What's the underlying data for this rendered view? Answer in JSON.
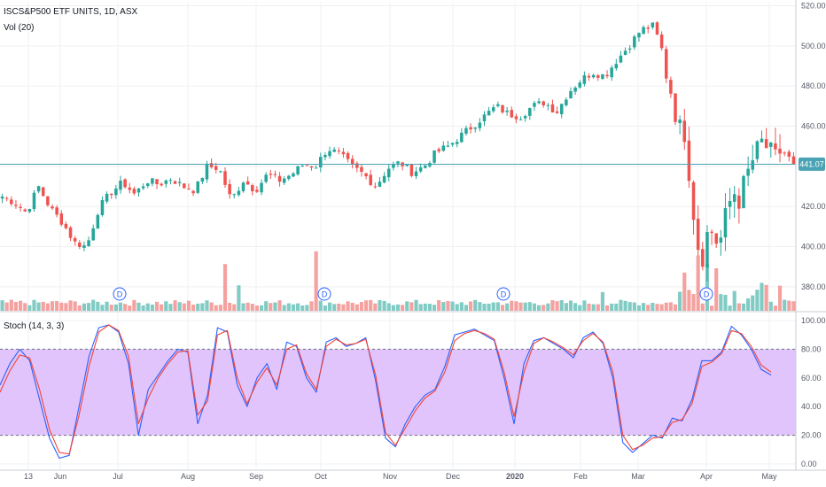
{
  "legend": {
    "symbol": "ISCS&P500 ETF UNITS, 1D, ASX",
    "volume": "Vol (20)",
    "stoch": "Stoch (14, 3, 3)"
  },
  "price_badge": "441.07",
  "colors": {
    "up": "#26a69a",
    "down": "#ef5350",
    "vol_up": "#80cbc4",
    "vol_down": "#f4a19f",
    "k_line": "#2962ff",
    "d_line": "#f44336",
    "band_fill": "#e1c4fb",
    "price_line": "#4aa3b5"
  },
  "chart_data": [
    {
      "type": "candlestick",
      "yaxis_ticks": [
        "380.00",
        "400.00",
        "420.00",
        "440.00",
        "460.00",
        "480.00",
        "500.00",
        "520.00"
      ],
      "ylim": [
        372,
        522
      ],
      "x_ticks": [
        "13",
        "Jun",
        "Jul",
        "Aug",
        "Sep",
        "Oct",
        "Nov",
        "Dec",
        "2020",
        "Feb",
        "Mar",
        "Apr",
        "May"
      ],
      "last_price": 441.07,
      "dividend_markers": [
        "D",
        "D",
        "D",
        "D"
      ],
      "close_path": [
        [
          0,
          425
        ],
        [
          6,
          422
        ],
        [
          12,
          417
        ],
        [
          18,
          430
        ],
        [
          24,
          419
        ],
        [
          30,
          412
        ],
        [
          36,
          402
        ],
        [
          42,
          400
        ],
        [
          48,
          419
        ],
        [
          54,
          427
        ],
        [
          60,
          432
        ],
        [
          66,
          426
        ],
        [
          72,
          433
        ],
        [
          78,
          431
        ],
        [
          84,
          434
        ],
        [
          90,
          430
        ],
        [
          96,
          428
        ],
        [
          102,
          440
        ],
        [
          108,
          439
        ],
        [
          114,
          423
        ],
        [
          120,
          433
        ],
        [
          126,
          428
        ],
        [
          132,
          436
        ],
        [
          138,
          433
        ],
        [
          144,
          436
        ],
        [
          150,
          441
        ],
        [
          156,
          440
        ],
        [
          162,
          449
        ],
        [
          168,
          446
        ],
        [
          174,
          440
        ],
        [
          180,
          436
        ],
        [
          186,
          430
        ],
        [
          192,
          439
        ],
        [
          198,
          442
        ],
        [
          204,
          437
        ],
        [
          210,
          440
        ],
        [
          216,
          447
        ],
        [
          222,
          450
        ],
        [
          228,
          455
        ],
        [
          234,
          460
        ],
        [
          240,
          465
        ],
        [
          246,
          470
        ],
        [
          252,
          466
        ],
        [
          258,
          465
        ],
        [
          264,
          470
        ],
        [
          270,
          472
        ],
        [
          276,
          467
        ],
        [
          282,
          477
        ],
        [
          288,
          483
        ],
        [
          294,
          487
        ],
        [
          300,
          485
        ],
        [
          306,
          493
        ],
        [
          312,
          500
        ],
        [
          318,
          508
        ],
        [
          324,
          510
        ],
        [
          328,
          500
        ],
        [
          331,
          485
        ],
        [
          334,
          474
        ],
        [
          337,
          458
        ],
        [
          340,
          458
        ],
        [
          343,
          428
        ],
        [
          346,
          402
        ],
        [
          349,
          396
        ],
        [
          352,
          411
        ],
        [
          355,
          403
        ],
        [
          358,
          404
        ],
        [
          361,
          418
        ],
        [
          364,
          428
        ],
        [
          367,
          424
        ],
        [
          370,
          432
        ],
        [
          373,
          442
        ],
        [
          376,
          447
        ],
        [
          379,
          453
        ],
        [
          382,
          446
        ],
        [
          385,
          443
        ],
        [
          388,
          448
        ],
        [
          391,
          445
        ],
        [
          394,
          441
        ]
      ],
      "volume_spikes": [
        {
          "t": 110,
          "v": 0.55
        },
        {
          "t": 117,
          "v": 0.3
        },
        {
          "t": 157,
          "v": 0.7
        },
        {
          "t": 298,
          "v": 0.22
        },
        {
          "t": 340,
          "v": 0.45
        },
        {
          "t": 347,
          "v": 0.65
        },
        {
          "t": 350,
          "v": 0.55
        },
        {
          "t": 356,
          "v": 0.5
        }
      ]
    },
    {
      "type": "line",
      "title": "Stoch (14, 3, 3)",
      "yaxis_ticks": [
        "0.00",
        "20.00",
        "40.00",
        "60.00",
        "80.00",
        "100.00"
      ],
      "ylim": [
        0,
        100
      ],
      "band": [
        20,
        80
      ],
      "series": [
        {
          "values": [
            55,
            70,
            80,
            72,
            45,
            18,
            4,
            6,
            40,
            75,
            95,
            97,
            92,
            70,
            20,
            52,
            62,
            72,
            80,
            78,
            28,
            48,
            95,
            92,
            55,
            40,
            60,
            70,
            52,
            85,
            82,
            60,
            50,
            85,
            88,
            82,
            84,
            88,
            58,
            18,
            12,
            28,
            40,
            48,
            52,
            68,
            90,
            92,
            94,
            90,
            86,
            60,
            28,
            70,
            86,
            88,
            84,
            80,
            74,
            88,
            92,
            84,
            60,
            15,
            8,
            14,
            20,
            18,
            32,
            30,
            45,
            72,
            72,
            78,
            96,
            90,
            80,
            66,
            62
          ]
        },
        {
          "values": [
            50,
            65,
            76,
            74,
            52,
            24,
            8,
            7,
            34,
            68,
            92,
            97,
            93,
            75,
            28,
            46,
            60,
            70,
            78,
            79,
            34,
            44,
            90,
            93,
            60,
            42,
            57,
            67,
            55,
            80,
            83,
            63,
            52,
            82,
            87,
            83,
            84,
            87,
            62,
            22,
            13,
            25,
            37,
            46,
            51,
            64,
            86,
            91,
            93,
            91,
            87,
            64,
            33,
            64,
            84,
            88,
            85,
            81,
            76,
            86,
            91,
            85,
            64,
            20,
            10,
            13,
            18,
            19,
            29,
            31,
            42,
            68,
            71,
            77,
            93,
            91,
            82,
            69,
            64
          ]
        }
      ]
    }
  ]
}
